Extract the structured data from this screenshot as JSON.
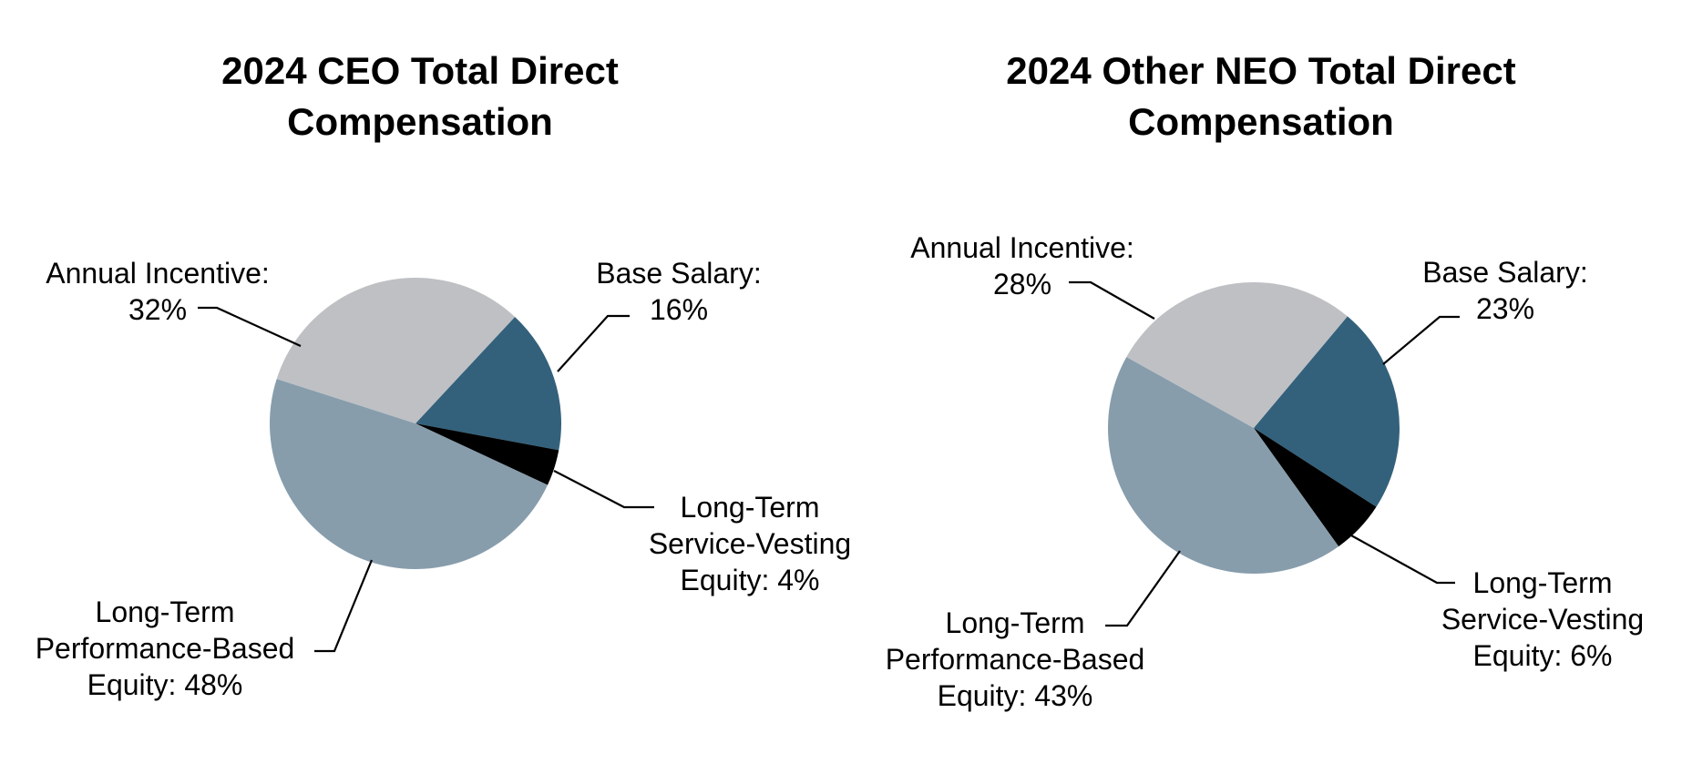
{
  "charts": [
    {
      "id": "ceo",
      "title_lines": [
        "2024 CEO Total Direct",
        "Compensation"
      ],
      "labels": {
        "annual_incentive": {
          "lines": [
            "Annual Incentive:",
            "32%"
          ]
        },
        "base_salary": {
          "lines": [
            "Base Salary:",
            "16%"
          ]
        },
        "service_vesting": {
          "lines": [
            "Long-Term",
            "Service-Vesting",
            "Equity: 4%"
          ]
        },
        "performance_based": {
          "lines": [
            "Long-Term",
            "Performance-Based",
            "Equity: 48%"
          ]
        }
      }
    },
    {
      "id": "neo",
      "title_lines": [
        "2024 Other NEO Total Direct",
        "Compensation"
      ],
      "labels": {
        "annual_incentive": {
          "lines": [
            "Annual Incentive:",
            "28%"
          ]
        },
        "base_salary": {
          "lines": [
            "Base Salary:",
            "23%"
          ]
        },
        "service_vesting": {
          "lines": [
            "Long-Term",
            "Service-Vesting",
            "Equity: 6%"
          ]
        },
        "performance_based": {
          "lines": [
            "Long-Term",
            "Performance-Based",
            "Equity: 43%"
          ]
        }
      }
    }
  ],
  "chart_data": [
    {
      "type": "pie",
      "title": "2024 CEO Total Direct Compensation",
      "unit": "%",
      "direction": "clockwise",
      "start_angle_deg": 43,
      "legend": "none",
      "slices": [
        {
          "label": "Base Salary",
          "value": 16,
          "color": "#33617C"
        },
        {
          "label": "Long-Term Service-Vesting Equity",
          "value": 4,
          "color": "#000000"
        },
        {
          "label": "Long-Term Performance-Based Equity",
          "value": 48,
          "color": "#879DAC"
        },
        {
          "label": "Annual Incentive",
          "value": 32,
          "color": "#BEC0C4"
        }
      ]
    },
    {
      "type": "pie",
      "title": "2024 Other NEO Total Direct Compensation",
      "unit": "%",
      "direction": "clockwise",
      "start_angle_deg": 40,
      "legend": "none",
      "slices": [
        {
          "label": "Base Salary",
          "value": 23,
          "color": "#33617C"
        },
        {
          "label": "Long-Term Service-Vesting Equity",
          "value": 6,
          "color": "#000000"
        },
        {
          "label": "Long-Term Performance-Based Equity",
          "value": 43,
          "color": "#879DAC"
        },
        {
          "label": "Annual Incentive",
          "value": 28,
          "color": "#BEC0C4"
        }
      ]
    }
  ]
}
